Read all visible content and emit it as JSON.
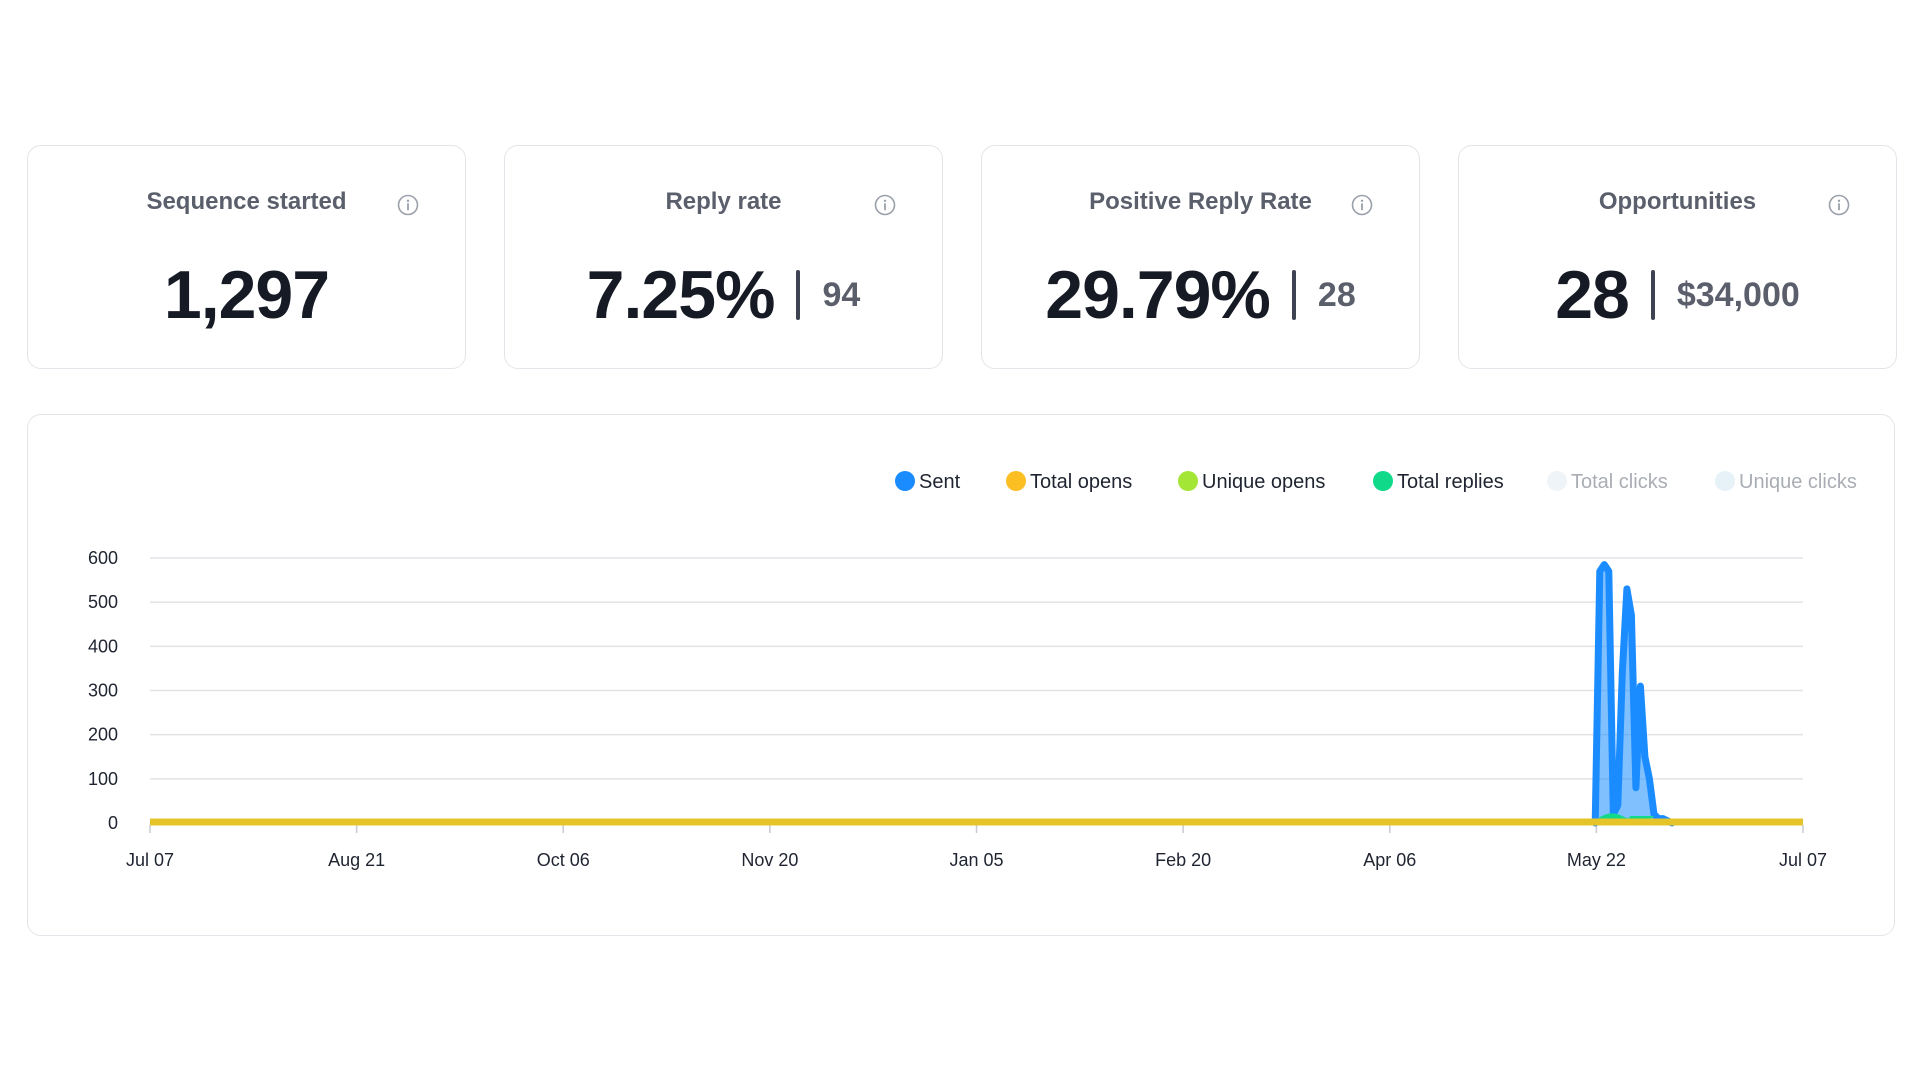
{
  "cards": [
    {
      "title": "Sequence started",
      "value": "1,297",
      "secondary": ""
    },
    {
      "title": "Reply rate",
      "value": "7.25%",
      "secondary": "94"
    },
    {
      "title": "Positive Reply Rate",
      "value": "29.79%",
      "secondary": "28"
    },
    {
      "title": "Opportunities",
      "value": "28",
      "secondary": "$34,000"
    }
  ],
  "icons": {
    "info": "info-circle-icon"
  },
  "colors": {
    "sent": "#1a8cff",
    "total_opens": "#fbbf24",
    "unique_opens": "#a3e635",
    "total_replies": "#10d98a",
    "total_clicks": "#eef4f8",
    "unique_clicks": "#e6f2f8",
    "card_border": "#e3e5ea"
  },
  "chart_data": {
    "type": "area",
    "ylim": [
      0,
      600
    ],
    "y_ticks": [
      "0",
      "100",
      "200",
      "300",
      "400",
      "500",
      "600"
    ],
    "x_ticks": [
      "Jul 07",
      "Aug 21",
      "Oct 06",
      "Nov 20",
      "Jan 05",
      "Feb 20",
      "Apr 06",
      "May 22",
      "Jul 07"
    ],
    "legend": [
      {
        "name": "Sent",
        "active": true
      },
      {
        "name": "Total opens",
        "active": true
      },
      {
        "name": "Unique opens",
        "active": true
      },
      {
        "name": "Total replies",
        "active": true
      },
      {
        "name": "Total clicks",
        "active": false
      },
      {
        "name": "Unique clicks",
        "active": false
      }
    ],
    "series": [
      {
        "name": "Sent",
        "points": [
          [
            "May 22",
            0
          ],
          [
            "May 23",
            570
          ],
          [
            "May 24",
            585
          ],
          [
            "May 25",
            570
          ],
          [
            "May 26",
            20
          ],
          [
            "May 27",
            40
          ],
          [
            "May 28",
            340
          ],
          [
            "May 29",
            530
          ],
          [
            "May 30",
            470
          ],
          [
            "May 31",
            80
          ],
          [
            "Jun 01",
            310
          ],
          [
            "Jun 02",
            150
          ],
          [
            "Jun 03",
            100
          ],
          [
            "Jun 04",
            20
          ],
          [
            "Jun 05",
            10
          ],
          [
            "Jun 06",
            10
          ],
          [
            "Jun 07",
            5
          ],
          [
            "Jun 08",
            0
          ]
        ]
      },
      {
        "name": "Total opens",
        "points": [
          [
            "Jul 07",
            0
          ],
          [
            "Jul 07",
            0
          ]
        ]
      },
      {
        "name": "Unique opens",
        "points": [
          [
            "Jul 07",
            0
          ],
          [
            "Jul 07",
            0
          ]
        ]
      },
      {
        "name": "Total replies",
        "points": [
          [
            "May 23",
            3
          ],
          [
            "May 30",
            3
          ]
        ]
      }
    ]
  }
}
